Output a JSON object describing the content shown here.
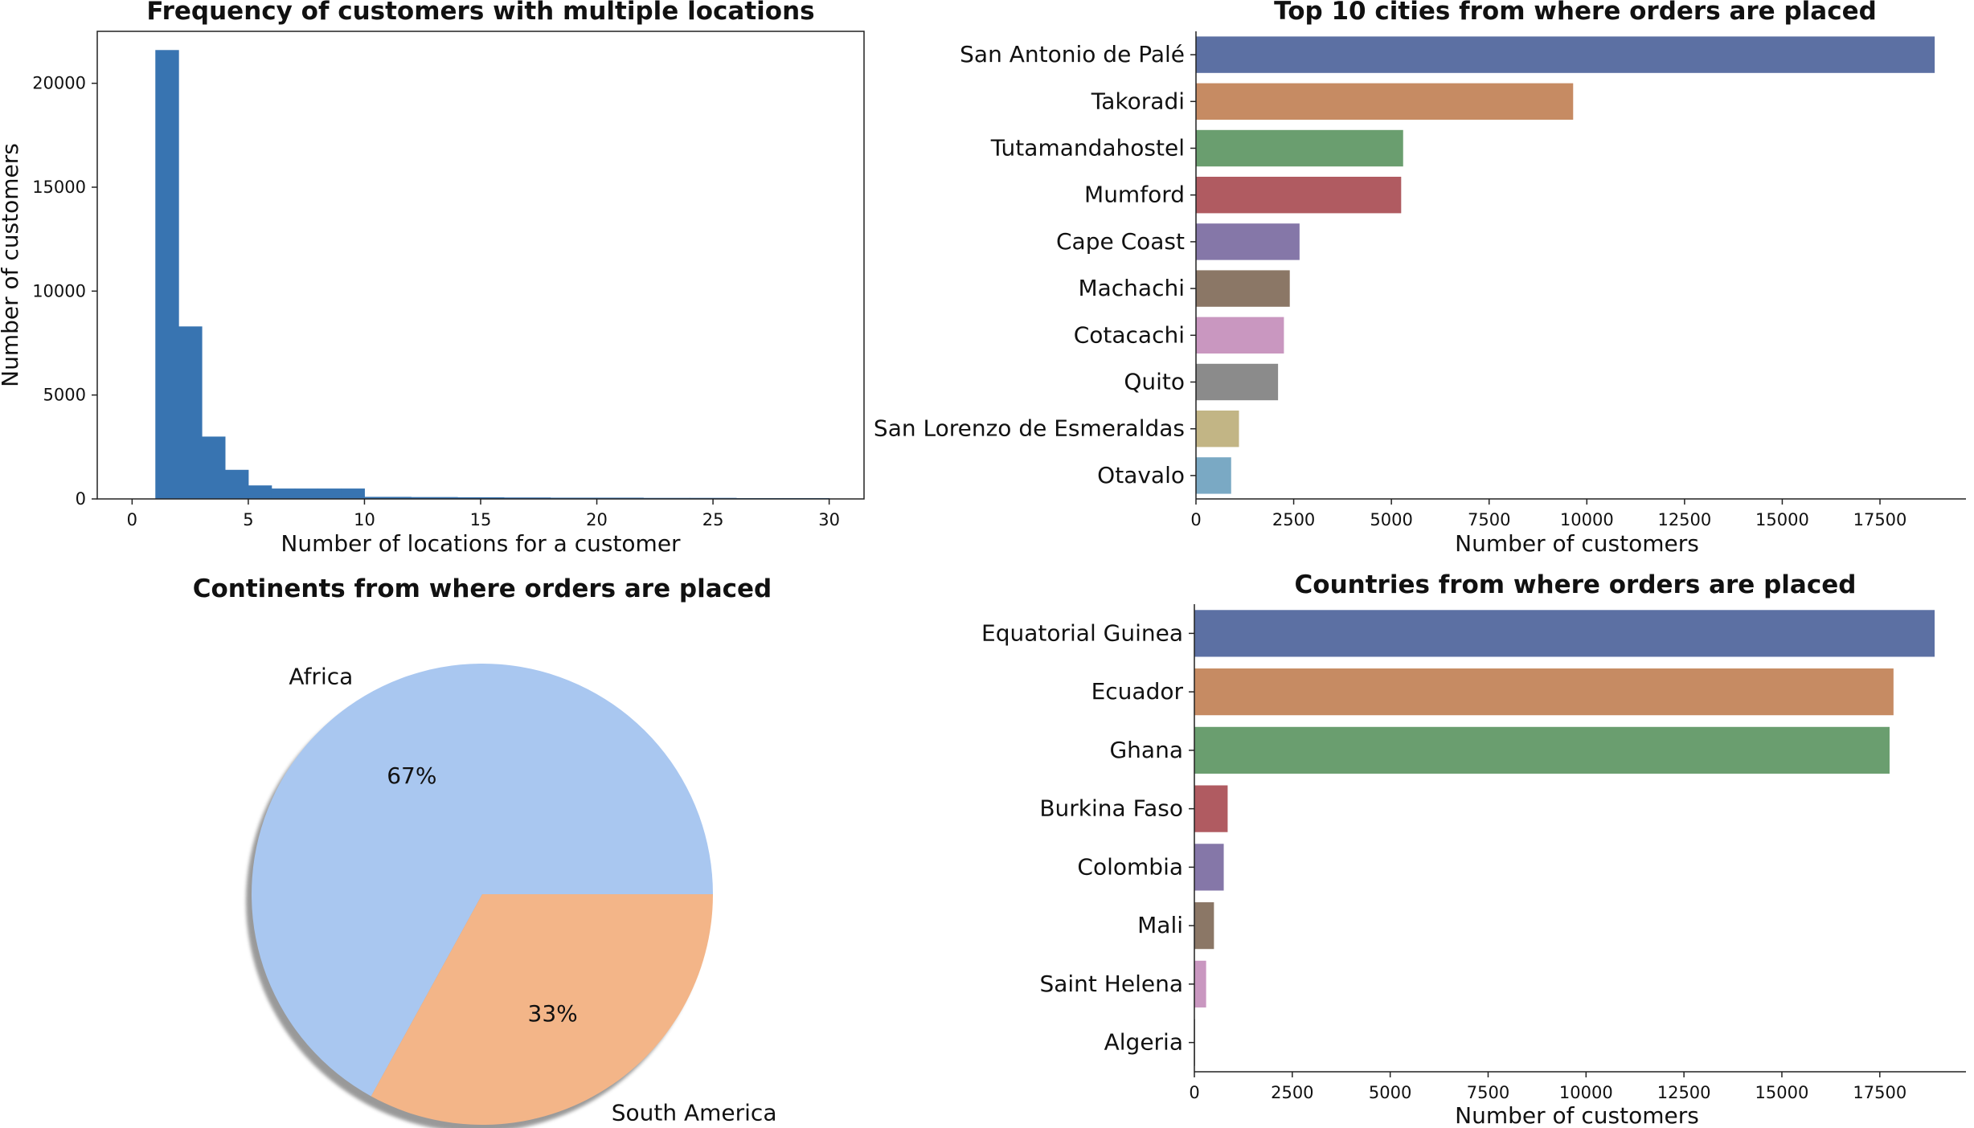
{
  "chart_data": [
    {
      "type": "bar",
      "chart_kind": "histogram",
      "title": "Frequency of customers with multiple locations",
      "xlabel": "Number of locations for a customer",
      "ylabel": "Number of customers",
      "xlim": [
        -1.5,
        31.5
      ],
      "ylim": [
        0,
        22500
      ],
      "xticks": [
        0,
        5,
        10,
        15,
        20,
        25,
        30
      ],
      "yticks": [
        0,
        5000,
        10000,
        15000,
        20000
      ],
      "color": "#3874b1",
      "bins": [
        {
          "x0": 1,
          "x1": 2,
          "value": 21600
        },
        {
          "x0": 2,
          "x1": 3,
          "value": 8300
        },
        {
          "x0": 3,
          "x1": 4,
          "value": 3000
        },
        {
          "x0": 4,
          "x1": 5,
          "value": 1400
        },
        {
          "x0": 5,
          "x1": 6,
          "value": 650
        },
        {
          "x0": 6,
          "x1": 7,
          "value": 500
        },
        {
          "x0": 7,
          "x1": 8,
          "value": 500
        },
        {
          "x0": 8,
          "x1": 9,
          "value": 500
        },
        {
          "x0": 9,
          "x1": 10,
          "value": 500
        },
        {
          "x0": 10,
          "x1": 12,
          "value": 100
        },
        {
          "x0": 12,
          "x1": 14,
          "value": 90
        },
        {
          "x0": 14,
          "x1": 16,
          "value": 80
        },
        {
          "x0": 16,
          "x1": 18,
          "value": 70
        },
        {
          "x0": 18,
          "x1": 20,
          "value": 60
        },
        {
          "x0": 20,
          "x1": 22,
          "value": 60
        },
        {
          "x0": 22,
          "x1": 24,
          "value": 50
        },
        {
          "x0": 24,
          "x1": 26,
          "value": 50
        },
        {
          "x0": 26,
          "x1": 28,
          "value": 40
        },
        {
          "x0": 28,
          "x1": 30,
          "value": 40
        }
      ]
    },
    {
      "type": "bar",
      "orientation": "horizontal",
      "title": "Top 10 cities from where orders are placed",
      "xlabel": "Number of customers",
      "ylabel": "",
      "xlim": [
        0,
        19700
      ],
      "xticks": [
        0,
        2500,
        5000,
        7500,
        10000,
        12500,
        15000,
        17500
      ],
      "categories": [
        "San Antonio de Palé",
        "Takoradi",
        "Tutamandahostel",
        "Mumford",
        "Cape Coast",
        "Machachi",
        "Cotacachi",
        "Quito",
        "San Lorenzo de Esmeraldas",
        "Otavalo"
      ],
      "values": [
        18900,
        9650,
        5300,
        5250,
        2650,
        2400,
        2250,
        2100,
        1100,
        900
      ],
      "colors": [
        "#5c70a3",
        "#c68b63",
        "#6a9e6f",
        "#b05b61",
        "#8577a8",
        "#8b7766",
        "#c997c0",
        "#8b8b8b",
        "#c2b585",
        "#7aa9c4"
      ]
    },
    {
      "type": "pie",
      "title": "Continents from where orders are placed",
      "labels": [
        "Africa",
        "South America"
      ],
      "values": [
        67,
        33
      ],
      "pct_labels": [
        "67%",
        "33%"
      ],
      "colors": [
        "#a9c7f0",
        "#f3b588"
      ],
      "shadow": true,
      "startangle": 0
    },
    {
      "type": "bar",
      "orientation": "horizontal",
      "title": "Countries from where orders are placed",
      "xlabel": "Number of customers",
      "ylabel": "",
      "xlim": [
        0,
        19700
      ],
      "xticks": [
        0,
        2500,
        5000,
        7500,
        10000,
        12500,
        15000,
        17500
      ],
      "categories": [
        "Equatorial Guinea",
        "Ecuador",
        "Ghana",
        "Burkina Faso",
        "Colombia",
        "Mali",
        "Saint Helena",
        "Algeria"
      ],
      "values": [
        18900,
        17850,
        17750,
        850,
        750,
        500,
        300,
        20
      ],
      "colors": [
        "#5c70a3",
        "#c68b63",
        "#6a9e6f",
        "#b05b61",
        "#8577a8",
        "#8b7766",
        "#c997c0",
        "#8b8b8b"
      ]
    }
  ]
}
